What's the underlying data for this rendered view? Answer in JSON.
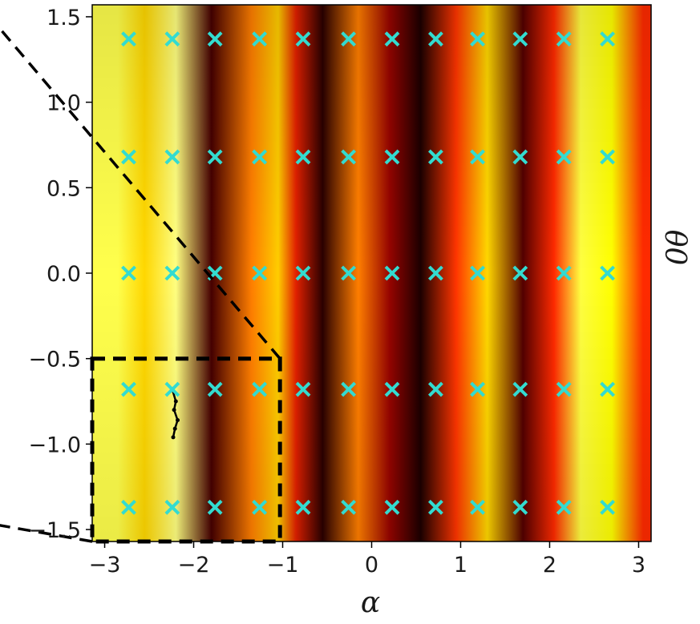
{
  "chart_data": {
    "type": "heatmap",
    "xlabel": "α",
    "ylabel": "θ0",
    "xlim": [
      -3.14,
      3.14
    ],
    "ylim": [
      -1.57,
      1.57
    ],
    "x_ticks": [
      {
        "value": -3,
        "label": "−3"
      },
      {
        "value": -2,
        "label": "−2"
      },
      {
        "value": -1,
        "label": "−1"
      },
      {
        "value": 0,
        "label": "0"
      },
      {
        "value": 1,
        "label": "1"
      },
      {
        "value": 2,
        "label": "2"
      },
      {
        "value": 3,
        "label": "3"
      }
    ],
    "y_ticks": [
      {
        "value": 1.5,
        "label": "1.5"
      },
      {
        "value": 1.0,
        "label": "1.0"
      },
      {
        "value": 0.5,
        "label": "0.5"
      },
      {
        "value": 0.0,
        "label": "0.0"
      },
      {
        "value": -0.5,
        "label": "−0.5"
      },
      {
        "value": -1.0,
        "label": "−1.0"
      },
      {
        "value": -1.5,
        "label": "−1.5"
      }
    ],
    "colormap": [
      "#000000",
      "#8b0000",
      "#ff2a00",
      "#ff9a00",
      "#ffff00",
      "#ffffff"
    ],
    "marker_color": "#33dbd0",
    "bands": [
      {
        "alpha": -2.85,
        "level": 0.86
      },
      {
        "alpha": -2.55,
        "level": 0.72
      },
      {
        "alpha": -2.2,
        "level": 0.9
      },
      {
        "alpha": -1.8,
        "level": 0.1
      },
      {
        "alpha": -1.35,
        "level": 0.55
      },
      {
        "alpha": -1.05,
        "level": 0.7
      },
      {
        "alpha": -0.85,
        "level": 0.35
      },
      {
        "alpha": -0.55,
        "level": 0.06
      },
      {
        "alpha": -0.15,
        "level": 0.55
      },
      {
        "alpha": 0.2,
        "level": 0.22
      },
      {
        "alpha": 0.55,
        "level": 0.04
      },
      {
        "alpha": 0.95,
        "level": 0.42
      },
      {
        "alpha": 1.3,
        "level": 0.72
      },
      {
        "alpha": 1.7,
        "level": 0.12
      },
      {
        "alpha": 2.05,
        "level": 0.4
      },
      {
        "alpha": 2.35,
        "level": 0.85
      },
      {
        "alpha": 2.7,
        "level": 0.8
      },
      {
        "alpha": 3.05,
        "level": 0.4
      }
    ],
    "markers": {
      "alpha": [
        -2.73,
        -2.24,
        -1.76,
        -1.26,
        -0.77,
        -0.26,
        0.23,
        0.72,
        1.19,
        1.67,
        2.16,
        2.65
      ],
      "theta0": [
        1.37,
        0.68,
        0.0,
        -0.68,
        -1.37
      ]
    },
    "trajectory": [
      {
        "alpha": -2.24,
        "theta0": -0.68
      },
      {
        "alpha": -2.2,
        "theta0": -0.75
      },
      {
        "alpha": -2.22,
        "theta0": -0.8
      },
      {
        "alpha": -2.18,
        "theta0": -0.86
      },
      {
        "alpha": -2.21,
        "theta0": -0.91
      },
      {
        "alpha": -2.23,
        "theta0": -0.96
      }
    ],
    "zoom_box": {
      "alpha": [
        -3.14,
        -1.03
      ],
      "theta0": [
        -1.57,
        -0.5
      ]
    }
  }
}
